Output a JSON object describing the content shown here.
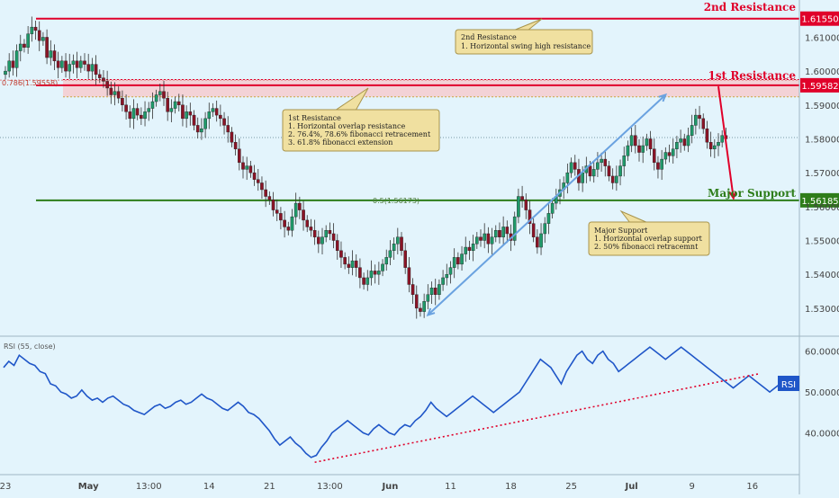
{
  "chart_data": [
    {
      "type": "candlestick",
      "name": "price",
      "price_axis": {
        "ylim": [
          1.522,
          1.621
        ],
        "ticks": [
          "1.61000",
          "1.60000",
          "1.59000",
          "1.58000",
          "1.57000",
          "1.56000",
          "1.55000",
          "1.54000",
          "1.53000"
        ],
        "tick_values": [
          1.61,
          1.6,
          1.59,
          1.58,
          1.57,
          1.56,
          1.55,
          1.54,
          1.53
        ]
      },
      "time_axis": {
        "ticks": [
          "23",
          "May",
          "13:00",
          "14",
          "21",
          "13:00",
          "Jun",
          "11",
          "18",
          "25",
          "Jul",
          "9",
          "16"
        ],
        "tick_index": [
          0,
          22,
          38,
          54,
          70,
          86,
          102,
          118,
          134,
          150,
          166,
          182,
          198
        ],
        "bar_count": 210
      },
      "levels": [
        {
          "name": "2nd Resistance",
          "price": 1.6155,
          "label": "1.61550",
          "color": "#e0002a"
        },
        {
          "name": "1st Resistance",
          "price": 1.59582,
          "label": "1.59582",
          "color": "#e0002a"
        },
        {
          "name": "Major Support",
          "price": 1.56185,
          "label": "1.56185",
          "color": "#2e7d1a"
        }
      ],
      "fib_labels": {
        "left": "0.786(1.59558)",
        "mid": "0.5(1.56173)"
      },
      "resistance_zone": [
        1.5924,
        1.5975
      ],
      "trendline": {
        "from": [
          112,
          1.528
        ],
        "to": [
          175,
          1.593
        ]
      },
      "projection": {
        "from": [
          189,
          1.5955
        ],
        "to": [
          193,
          1.5625
        ]
      },
      "current_price": 1.5804,
      "ohlc_closes": [
        1.6,
        1.603,
        1.601,
        1.606,
        1.608,
        1.607,
        1.611,
        1.613,
        1.612,
        1.609,
        1.61,
        1.604,
        1.606,
        1.603,
        1.601,
        1.603,
        1.6,
        1.602,
        1.603,
        1.601,
        1.603,
        1.602,
        1.6,
        1.602,
        1.599,
        1.598,
        1.597,
        1.595,
        1.593,
        1.594,
        1.592,
        1.59,
        1.588,
        1.586,
        1.589,
        1.587,
        1.586,
        1.588,
        1.589,
        1.591,
        1.593,
        1.594,
        1.592,
        1.588,
        1.589,
        1.591,
        1.59,
        1.586,
        1.588,
        1.587,
        1.584,
        1.582,
        1.583,
        1.586,
        1.588,
        1.589,
        1.587,
        1.586,
        1.584,
        1.582,
        1.579,
        1.577,
        1.573,
        1.571,
        1.572,
        1.57,
        1.568,
        1.567,
        1.565,
        1.563,
        1.562,
        1.559,
        1.558,
        1.556,
        1.554,
        1.553,
        1.557,
        1.561,
        1.559,
        1.556,
        1.554,
        1.553,
        1.551,
        1.549,
        1.551,
        1.553,
        1.552,
        1.55,
        1.547,
        1.545,
        1.543,
        1.542,
        1.544,
        1.542,
        1.539,
        1.537,
        1.539,
        1.541,
        1.54,
        1.541,
        1.543,
        1.545,
        1.547,
        1.549,
        1.551,
        1.547,
        1.542,
        1.537,
        1.534,
        1.53,
        1.529,
        1.532,
        1.534,
        1.536,
        1.534,
        1.537,
        1.539,
        1.54,
        1.542,
        1.545,
        1.543,
        1.546,
        1.548,
        1.547,
        1.549,
        1.551,
        1.55,
        1.552,
        1.549,
        1.551,
        1.553,
        1.551,
        1.554,
        1.552,
        1.55,
        1.557,
        1.563,
        1.562,
        1.559,
        1.555,
        1.551,
        1.548,
        1.552,
        1.555,
        1.558,
        1.561,
        1.563,
        1.565,
        1.567,
        1.57,
        1.573,
        1.571,
        1.567,
        1.57,
        1.572,
        1.569,
        1.571,
        1.573,
        1.574,
        1.572,
        1.569,
        1.567,
        1.569,
        1.572,
        1.575,
        1.578,
        1.581,
        1.578,
        1.576,
        1.578,
        1.58,
        1.577,
        1.573,
        1.571,
        1.574,
        1.576,
        1.575,
        1.577,
        1.579,
        1.58,
        1.578,
        1.581,
        1.584,
        1.587,
        1.586,
        1.583,
        1.579,
        1.577,
        1.578,
        1.579,
        1.581,
        1.58
      ]
    },
    {
      "type": "line",
      "name": "rsi",
      "label": "RSI (55, close)",
      "badge": "RSI",
      "ylim": [
        30,
        63
      ],
      "ticks": [
        "60.0000",
        "50.0000",
        "40.0000"
      ],
      "tick_values": [
        60,
        50,
        40
      ],
      "trendline": {
        "from": [
          82,
          32.8
        ],
        "to": [
          200,
          54.5
        ]
      },
      "values": [
        56,
        57.5,
        56.5,
        59,
        58,
        57,
        56.5,
        55,
        54.5,
        52,
        51.5,
        50,
        49.5,
        48.5,
        49,
        50.5,
        49,
        48,
        48.5,
        47.5,
        48.5,
        49,
        48,
        47,
        46.5,
        45.5,
        45,
        44.5,
        45.5,
        46.5,
        47,
        46,
        46.5,
        47.5,
        48,
        47,
        47.5,
        48.5,
        49.5,
        48.5,
        48,
        47,
        46,
        45.5,
        46.5,
        47.5,
        46.5,
        45,
        44.5,
        43.5,
        42,
        40.5,
        38.5,
        37,
        38,
        39,
        37.5,
        36.5,
        35,
        34,
        34.5,
        36.5,
        38,
        40,
        41,
        42,
        43,
        42,
        41,
        40,
        39.5,
        41,
        42,
        41,
        40,
        39.5,
        41,
        42,
        41.5,
        43,
        44,
        45.5,
        47.5,
        46,
        45,
        44,
        45,
        46,
        47,
        48,
        49,
        48,
        47,
        46,
        45,
        46,
        47,
        48,
        49,
        50,
        52,
        54,
        56,
        58,
        57,
        56,
        54,
        52,
        55,
        57,
        59,
        60,
        58,
        57,
        59,
        60,
        58,
        57,
        55,
        56,
        57,
        58,
        59,
        60,
        61,
        60,
        59,
        58,
        59,
        60,
        61,
        60,
        59,
        58,
        57,
        56,
        55,
        54,
        53,
        52,
        51,
        52,
        53,
        54,
        53,
        52,
        51,
        50,
        51,
        52,
        53,
        52
      ]
    }
  ],
  "annotations": {
    "second_resistance": {
      "title": "2nd Resistance",
      "lines": [
        "1. Horizontal swing high resistance"
      ]
    },
    "first_resistance": {
      "title": "1st Resistance",
      "lines": [
        "1. Horizontal overlap resistance",
        "2. 76.4%, 78.6% fibonacci retracement",
        "3. 61.8% fibonacci extension"
      ]
    },
    "major_support": {
      "title": "Major Support",
      "lines": [
        "1. Horizontal overlap support",
        "2. 50% fibonacci retracemnt"
      ]
    }
  },
  "colors": {
    "background": "#e3f4fc",
    "bull": "#1f9a6a",
    "bear": "#8a1426",
    "rsi_line": "#1f56c8",
    "note_bg": "#f0e0a0",
    "note_border": "#a8944c"
  }
}
